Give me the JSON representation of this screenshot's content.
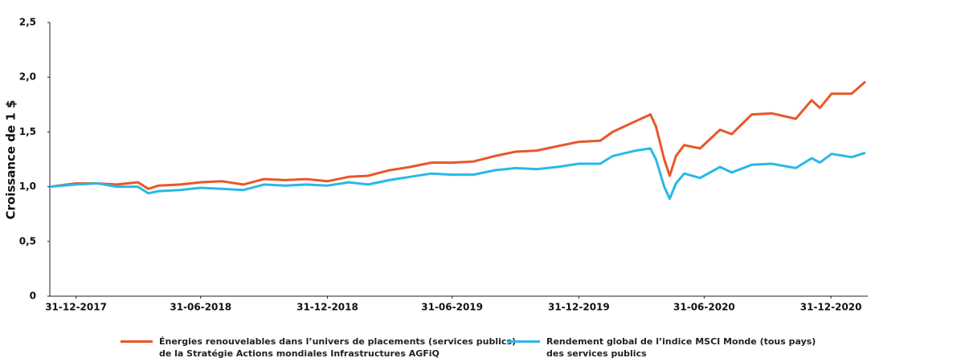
{
  "chart_data": {
    "type": "line",
    "y_label": "Croissance de 1 $",
    "x": [
      "2017-11-23",
      "2017-12-31",
      "2018-01-31",
      "2018-02-28",
      "2018-03-31",
      "2018-04-15",
      "2018-04-30",
      "2018-05-31",
      "2018-06-30",
      "2018-07-31",
      "2018-08-31",
      "2018-09-30",
      "2018-10-31",
      "2018-11-30",
      "2018-12-31",
      "2019-01-31",
      "2019-02-28",
      "2019-03-31",
      "2019-04-30",
      "2019-05-31",
      "2019-06-30",
      "2019-07-31",
      "2019-08-31",
      "2019-09-30",
      "2019-10-31",
      "2019-11-30",
      "2019-12-31",
      "2020-01-31",
      "2020-02-18",
      "2020-03-23",
      "2020-04-13",
      "2020-04-21",
      "2020-05-03",
      "2020-05-11",
      "2020-05-20",
      "2020-06-01",
      "2020-06-24",
      "2020-07-23",
      "2020-08-09",
      "2020-09-07",
      "2020-10-06",
      "2020-11-10",
      "2020-12-03",
      "2020-12-15",
      "2021-01-01",
      "2021-01-30",
      "2021-02-19"
    ],
    "series": [
      {
        "name": "Énergies renouvelables dans l’univers de placements (services publics) de la Stratégie Actions mondiales Infrastructures AGFiQ",
        "color": "#e8572a",
        "values": [
          1.0,
          1.03,
          1.03,
          1.02,
          1.04,
          0.98,
          1.01,
          1.02,
          1.04,
          1.05,
          1.02,
          1.07,
          1.06,
          1.07,
          1.05,
          1.09,
          1.1,
          1.15,
          1.18,
          1.22,
          1.22,
          1.23,
          1.28,
          1.32,
          1.33,
          1.37,
          1.41,
          1.42,
          1.5,
          1.6,
          1.66,
          1.55,
          1.25,
          1.1,
          1.28,
          1.38,
          1.35,
          1.52,
          1.48,
          1.66,
          1.67,
          1.62,
          1.79,
          1.72,
          1.85,
          1.85,
          1.96
        ]
      },
      {
        "name": "Rendement global de l’indice MSCI Monde (tous pays) des services publics",
        "color": "#29b8e8",
        "values": [
          1.0,
          1.02,
          1.03,
          1.0,
          1.0,
          0.94,
          0.96,
          0.97,
          0.99,
          0.98,
          0.97,
          1.02,
          1.01,
          1.02,
          1.01,
          1.04,
          1.02,
          1.06,
          1.09,
          1.12,
          1.11,
          1.11,
          1.15,
          1.17,
          1.16,
          1.18,
          1.21,
          1.21,
          1.28,
          1.33,
          1.35,
          1.25,
          1.0,
          0.89,
          1.03,
          1.12,
          1.08,
          1.18,
          1.13,
          1.2,
          1.21,
          1.17,
          1.26,
          1.22,
          1.3,
          1.27,
          1.31
        ]
      }
    ],
    "xlim": [
      "2017-11-23",
      "2021-02-19"
    ],
    "xticks": [
      {
        "value": "2017-12-31",
        "label": "31-12-2017"
      },
      {
        "value": "2018-06-30",
        "label": "31-06-2018"
      },
      {
        "value": "2018-12-31",
        "label": "31-12-2018"
      },
      {
        "value": "2019-06-30",
        "label": "31-06-2019"
      },
      {
        "value": "2019-12-31",
        "label": "31-12-2019"
      },
      {
        "value": "2020-06-30",
        "label": "31-06-2020"
      },
      {
        "value": "2020-12-31",
        "label": "31-12-2020"
      }
    ],
    "ylim": [
      0,
      2.5
    ],
    "yticks": [
      0,
      {
        "value": 0.5,
        "label": "0,5"
      },
      {
        "value": 1,
        "label": "1,0"
      },
      {
        "value": 1.5,
        "label": "1,5"
      },
      {
        "value": 2,
        "label": "2,0"
      },
      {
        "value": 2.5,
        "label": "2,5"
      }
    ],
    "grid": false
  }
}
